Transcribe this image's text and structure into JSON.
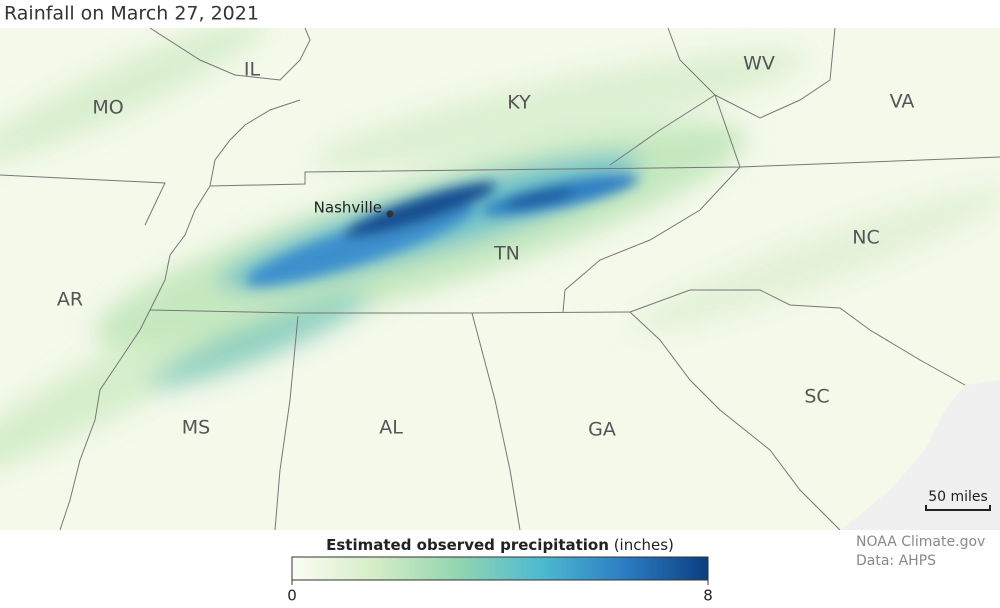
{
  "title": "Rainfall on March 27, 2021",
  "states": [
    "MO",
    "IL",
    "KY",
    "WV",
    "VA",
    "NC",
    "TN",
    "AR",
    "MS",
    "AL",
    "GA",
    "SC"
  ],
  "city": "Nashville",
  "scale_bar": "50 miles",
  "legend": {
    "title": "Estimated observed precipitation",
    "units": "(inches)",
    "lim": [
      0,
      8
    ],
    "ticks": [
      0,
      8
    ],
    "colors": [
      "#fbfdf3",
      "#d5edc6",
      "#92d5b0",
      "#4dbad0",
      "#2b7cc3",
      "#0b3f80"
    ]
  },
  "credits": [
    "NOAA Climate.gov",
    "Data: AHPS"
  ]
}
